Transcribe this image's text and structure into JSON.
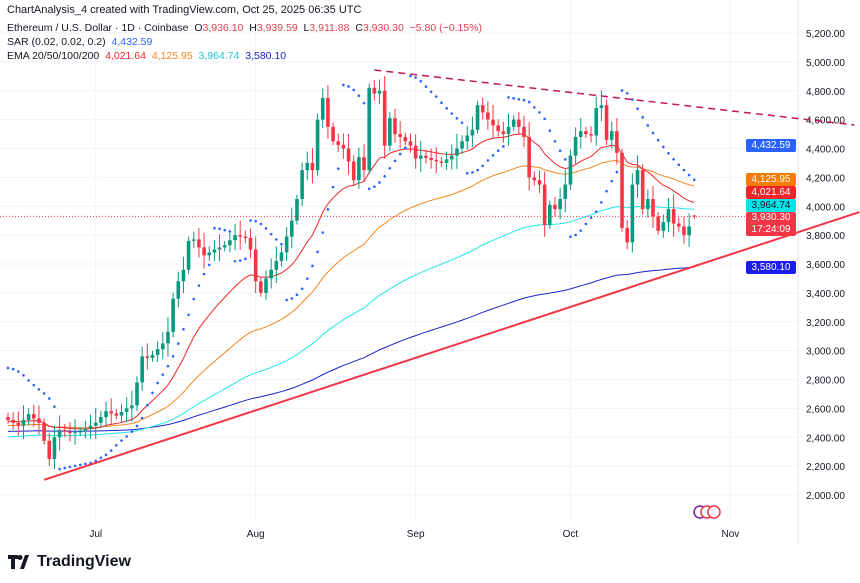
{
  "header": "ChartAnalysis_4 created with TradingView.com, Oct 25, 2025 06:35 UTC",
  "symbol": {
    "name": "Ethereum / U.S. Dollar · 1D · Coinbase",
    "o_label": "O",
    "o": "3,936.10",
    "h_label": "H",
    "h": "3,939.59",
    "l_label": "L",
    "l": "3,911.88",
    "c_label": "C",
    "c": "3,930.30",
    "change": "−5.80 (−0.15%)"
  },
  "sar": {
    "label": "SAR (0.02, 0.02, 0.2)",
    "value": "4,432.59"
  },
  "ema": {
    "label": "EMA 20/50/100/200",
    "v20": "4,021.64",
    "v50": "4,125.95",
    "v100": "3,964.74",
    "v200": "3,580.10"
  },
  "tags": {
    "sar": "4,432.59",
    "ema50": "4,125.95",
    "ema20": "4,021.64",
    "ema100": "3,964.74",
    "price": "3,930.30",
    "countdown": "17:24:09",
    "ema200": "3,580.10"
  },
  "colors": {
    "up": "#089981",
    "down": "#f23645",
    "sar": "#2962ff",
    "ema20": "#f0252a",
    "ema50": "#f5861f",
    "ema100": "#22e6e6",
    "ema200": "#1c23c7",
    "support": "#f23645",
    "resistance": "#c2185b"
  },
  "logo": "TradingView",
  "chart_data": {
    "type": "candlestick",
    "start_date": "2025-06-14",
    "interval": "1D",
    "close_keypoints_day_price": [
      [
        0,
        2520
      ],
      [
        2,
        2480
      ],
      [
        4,
        2560
      ],
      [
        6,
        2500
      ],
      [
        8,
        2250
      ],
      [
        9,
        2400
      ],
      [
        10,
        2450
      ],
      [
        12,
        2430
      ],
      [
        14,
        2440
      ],
      [
        16,
        2480
      ],
      [
        17,
        2500
      ],
      [
        19,
        2580
      ],
      [
        21,
        2550
      ],
      [
        23,
        2600
      ],
      [
        24,
        2620
      ],
      [
        25,
        2780
      ],
      [
        26,
        2960
      ],
      [
        27,
        2950
      ],
      [
        28,
        2970
      ],
      [
        30,
        3050
      ],
      [
        31,
        3130
      ],
      [
        32,
        3360
      ],
      [
        33,
        3480
      ],
      [
        34,
        3560
      ],
      [
        35,
        3760
      ],
      [
        36,
        3770
      ],
      [
        38,
        3660
      ],
      [
        40,
        3700
      ],
      [
        42,
        3730
      ],
      [
        44,
        3800
      ],
      [
        46,
        3780
      ],
      [
        47,
        3700
      ],
      [
        48,
        3480
      ],
      [
        49,
        3400
      ],
      [
        50,
        3500
      ],
      [
        52,
        3620
      ],
      [
        53,
        3680
      ],
      [
        55,
        3900
      ],
      [
        56,
        4050
      ],
      [
        57,
        4250
      ],
      [
        58,
        4300
      ],
      [
        59,
        4250
      ],
      [
        60,
        4600
      ],
      [
        61,
        4750
      ],
      [
        62,
        4550
      ],
      [
        63,
        4450
      ],
      [
        65,
        4400
      ],
      [
        66,
        4310
      ],
      [
        67,
        4180
      ],
      [
        68,
        4340
      ],
      [
        69,
        4250
      ],
      [
        70,
        4820
      ],
      [
        71,
        4780
      ],
      [
        72,
        4800
      ],
      [
        73,
        4420
      ],
      [
        74,
        4610
      ],
      [
        75,
        4500
      ],
      [
        76,
        4480
      ],
      [
        78,
        4420
      ],
      [
        79,
        4330
      ],
      [
        80,
        4350
      ],
      [
        82,
        4320
      ],
      [
        84,
        4300
      ],
      [
        86,
        4350
      ],
      [
        88,
        4450
      ],
      [
        90,
        4530
      ],
      [
        91,
        4700
      ],
      [
        92,
        4650
      ],
      [
        93,
        4600
      ],
      [
        95,
        4520
      ],
      [
        96,
        4500
      ],
      [
        98,
        4600
      ],
      [
        99,
        4550
      ],
      [
        100,
        4480
      ],
      [
        101,
        4200
      ],
      [
        102,
        4180
      ],
      [
        103,
        4150
      ],
      [
        104,
        3870
      ],
      [
        105,
        4010
      ],
      [
        106,
        3980
      ],
      [
        107,
        4050
      ],
      [
        108,
        4150
      ],
      [
        109,
        4350
      ],
      [
        110,
        4480
      ],
      [
        111,
        4520
      ],
      [
        112,
        4500
      ],
      [
        113,
        4490
      ],
      [
        114,
        4680
      ],
      [
        115,
        4700
      ],
      [
        116,
        4460
      ],
      [
        117,
        4520
      ],
      [
        118,
        4370
      ],
      [
        119,
        3850
      ],
      [
        120,
        3750
      ],
      [
        121,
        4150
      ],
      [
        122,
        4250
      ],
      [
        123,
        3980
      ],
      [
        124,
        4050
      ],
      [
        125,
        3930
      ],
      [
        126,
        3830
      ],
      [
        127,
        3890
      ],
      [
        128,
        3980
      ],
      [
        129,
        3880
      ],
      [
        130,
        3860
      ],
      [
        131,
        3800
      ],
      [
        132,
        3860
      ],
      [
        133,
        3930
      ]
    ],
    "last_candle": {
      "open": 3936.1,
      "high": 3939.59,
      "low": 3911.88,
      "close": 3930.3
    },
    "y_ticks": [
      "5,200.00",
      "5,000.00",
      "4,800.00",
      "4,600.00",
      "4,400.00",
      "4,200.00",
      "4,000.00",
      "3,800.00",
      "3,600.00",
      "3,400.00",
      "3,200.00",
      "3,000.00",
      "2,800.00",
      "2,600.00",
      "2,400.00",
      "2,200.00",
      "2,000.00"
    ],
    "x_ticks": [
      {
        "label": "Jul",
        "day": 17
      },
      {
        "label": "Aug",
        "day": 48
      },
      {
        "label": "Sep",
        "day": 79
      },
      {
        "label": "Oct",
        "day": 109
      },
      {
        "label": "Nov",
        "day": 140
      }
    ],
    "ylim": [
      2000,
      5200
    ],
    "support_line": {
      "from": {
        "day": 7,
        "price": 2105
      },
      "to": {
        "day": 165,
        "price": 3960
      }
    },
    "resistance_line": {
      "from": {
        "day": 71,
        "price": 4944
      },
      "to": {
        "day": 164,
        "price": 4563
      }
    }
  }
}
